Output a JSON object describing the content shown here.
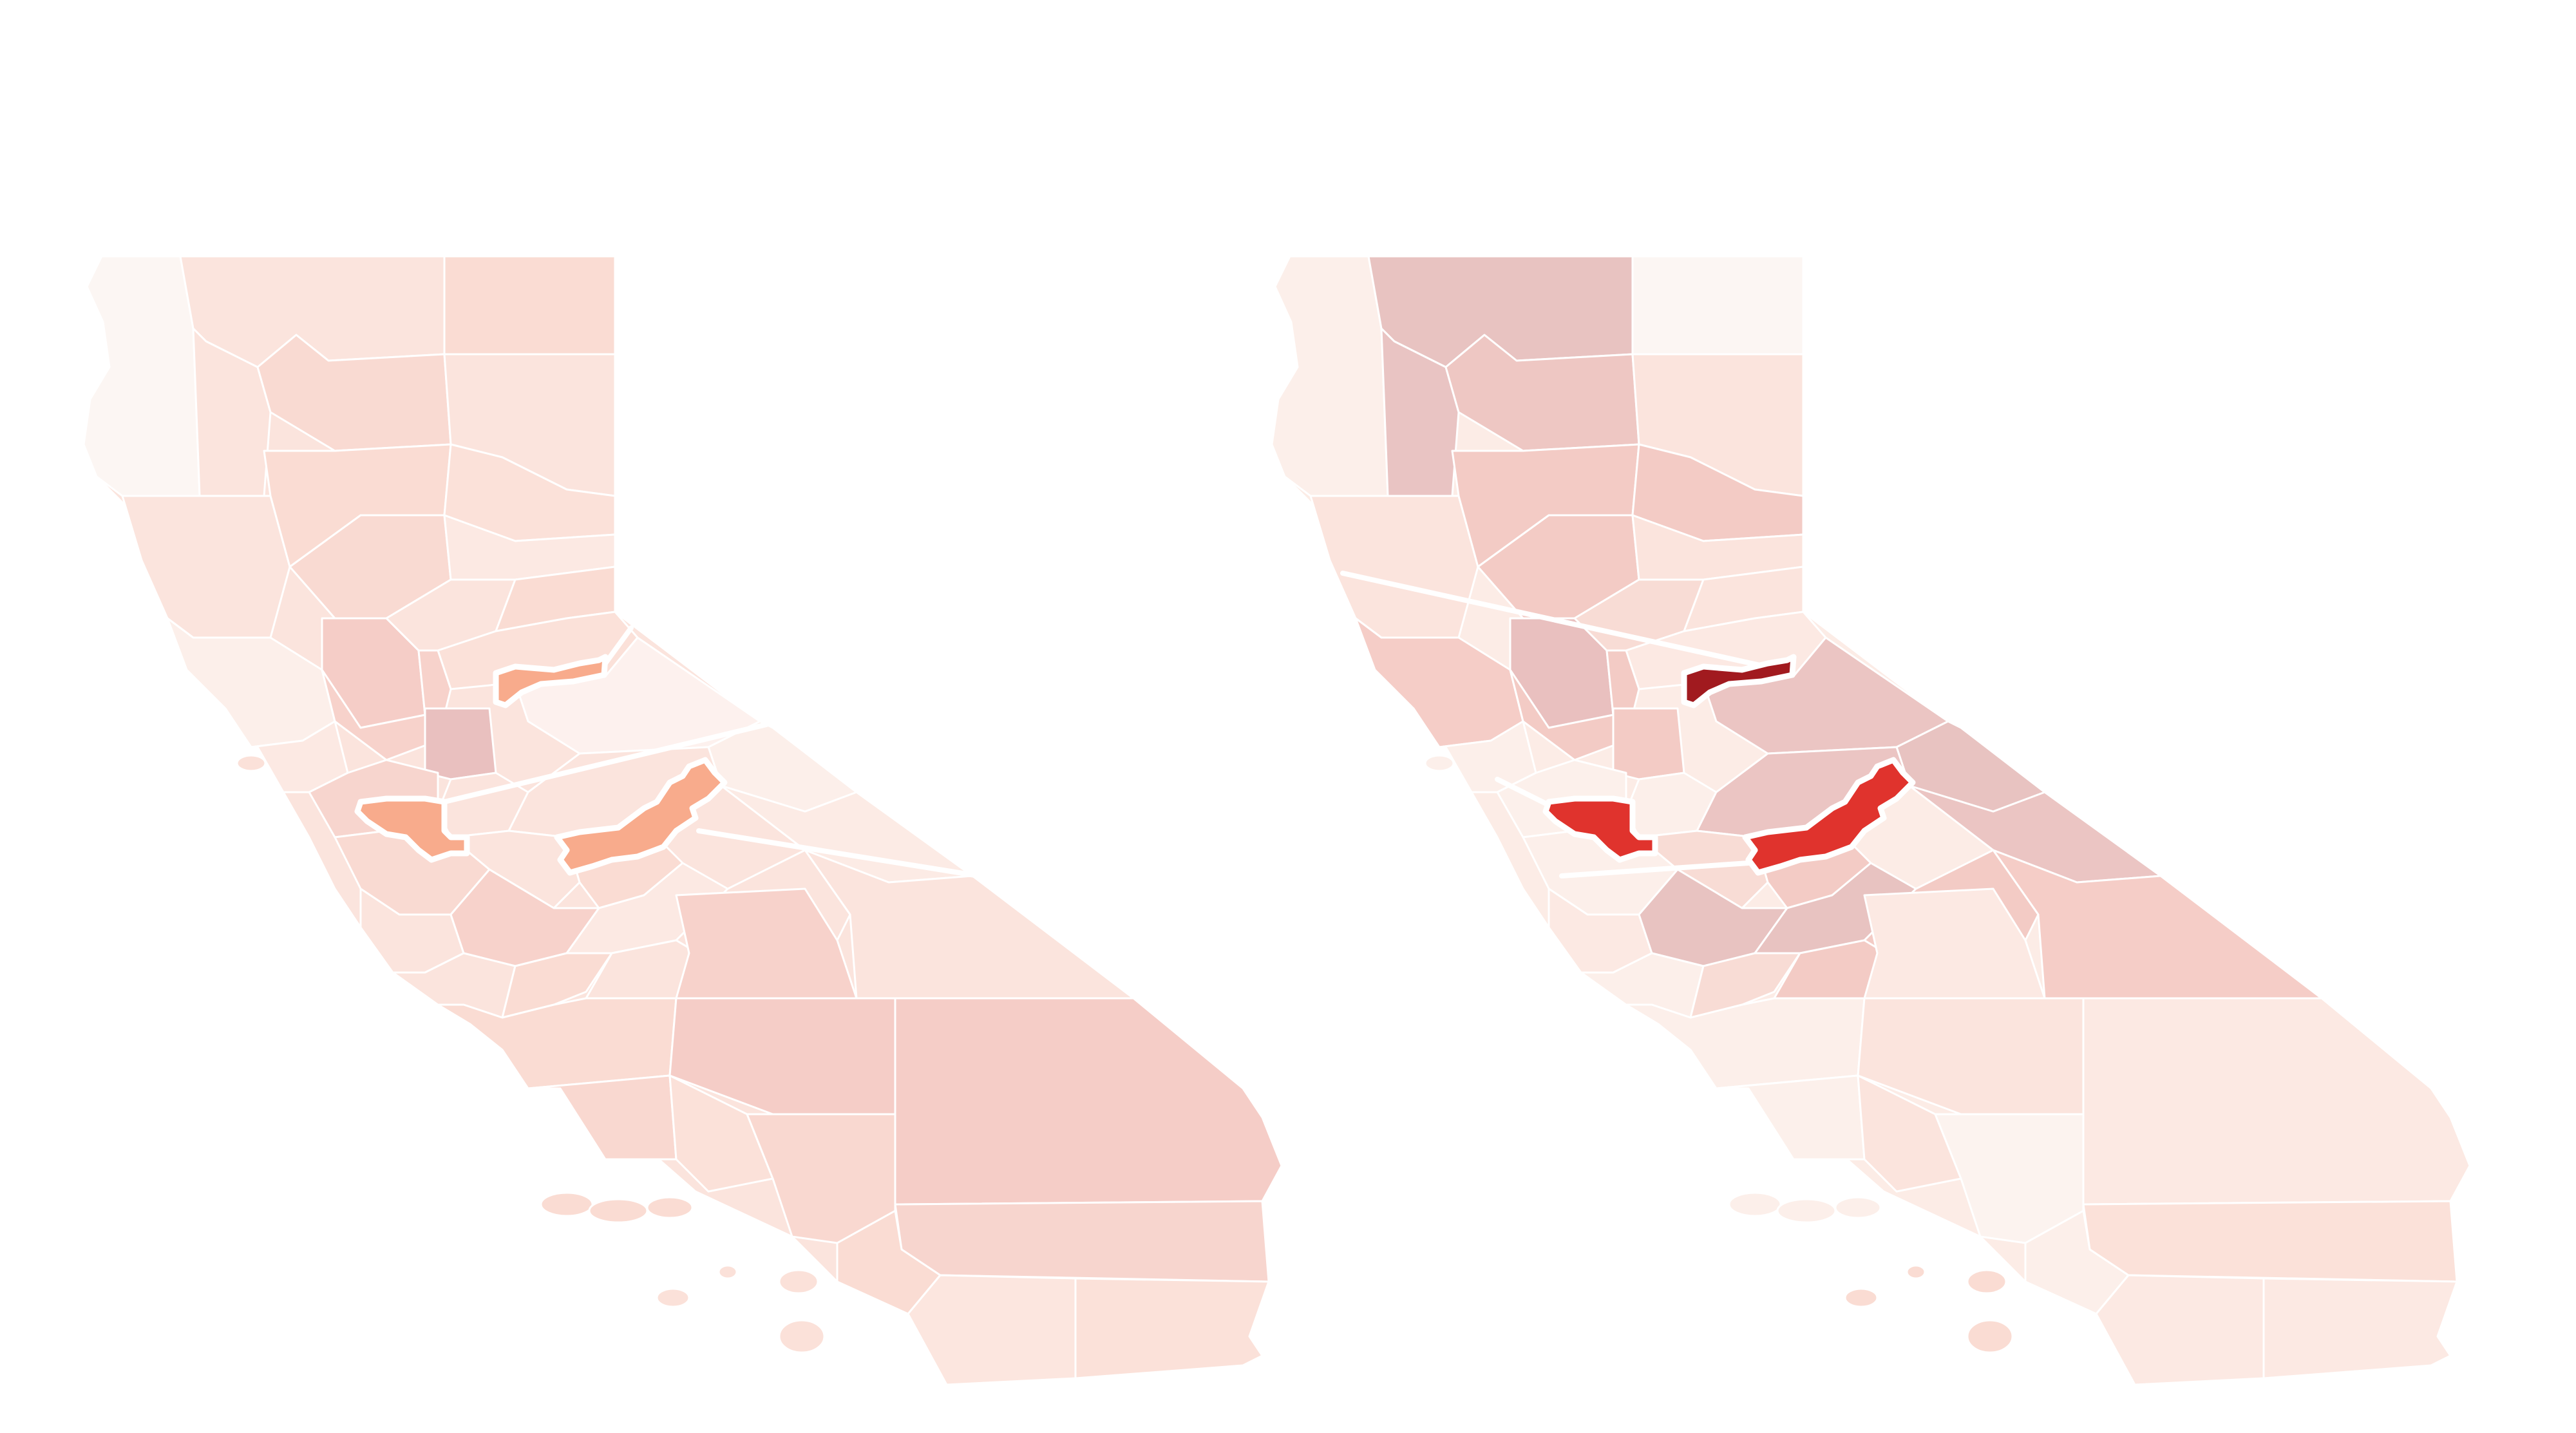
{
  "maps": [
    {
      "id": "left",
      "palette": "salmon",
      "highlight_color": "#f8ab8c",
      "highlighted_regions": [
        "north-sliver",
        "bay-county",
        "central-strip"
      ]
    },
    {
      "id": "right",
      "palette": "red",
      "highlight_colors": [
        "#a11a1f",
        "#e0332d",
        "#e0332d"
      ],
      "highlighted_regions": [
        "north-sliver",
        "bay-county",
        "central-strip"
      ]
    }
  ],
  "colors": {
    "background": "#ffffff",
    "left_scale": [
      "#fcf6f3",
      "#fbe4dd",
      "#f9dad2",
      "#f5cdc7",
      "#e9c0bf",
      "#f8ab8c"
    ],
    "right_scale": [
      "#fcf6f3",
      "#fcece6",
      "#f8dcd5",
      "#f3cbc5",
      "#e8c3c1",
      "#e0332d",
      "#a11a1f"
    ]
  }
}
